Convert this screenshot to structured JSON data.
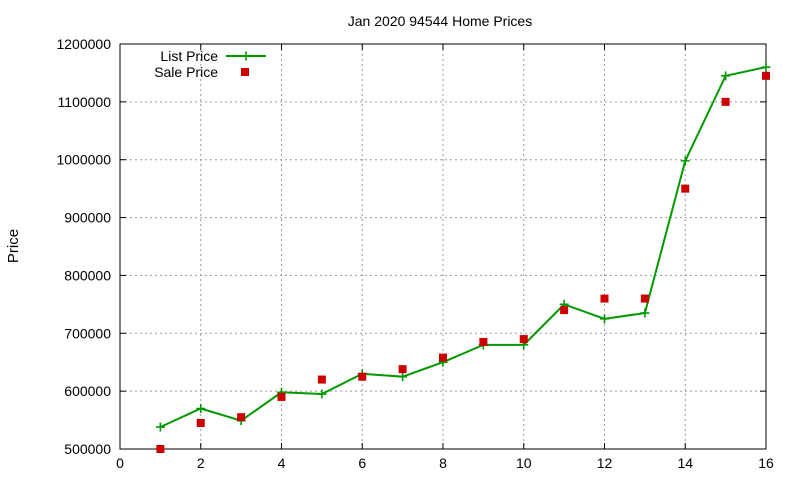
{
  "chart_data": {
    "type": "line",
    "title": "Jan 2020 94544 Home Prices",
    "xlabel": "",
    "ylabel": "Price",
    "xlim": [
      0,
      16
    ],
    "ylim": [
      500000,
      1200000
    ],
    "x_ticks": [
      0,
      2,
      4,
      6,
      8,
      10,
      12,
      14,
      16
    ],
    "y_ticks": [
      500000,
      600000,
      700000,
      800000,
      900000,
      1000000,
      1100000,
      1200000
    ],
    "grid": true,
    "legend_position": "top-left",
    "series": [
      {
        "name": "List Price",
        "style": "line+cross",
        "color": "#009900",
        "x": [
          1,
          2,
          3,
          4,
          5,
          6,
          7,
          8,
          9,
          10,
          11,
          12,
          13,
          14,
          15,
          16
        ],
        "y": [
          538000,
          570000,
          549000,
          598000,
          595000,
          630000,
          625000,
          650000,
          680000,
          680000,
          750000,
          725000,
          735000,
          998000,
          1145000,
          1160000
        ]
      },
      {
        "name": "Sale Price",
        "style": "square",
        "color": "#cc0000",
        "x": [
          1,
          2,
          3,
          4,
          5,
          6,
          7,
          8,
          9,
          10,
          11,
          12,
          13,
          14,
          15,
          16
        ],
        "y": [
          500000,
          545000,
          555000,
          590000,
          620000,
          625000,
          638000,
          658000,
          685000,
          690000,
          740000,
          760000,
          760000,
          950000,
          1100000,
          1145000
        ]
      }
    ]
  }
}
